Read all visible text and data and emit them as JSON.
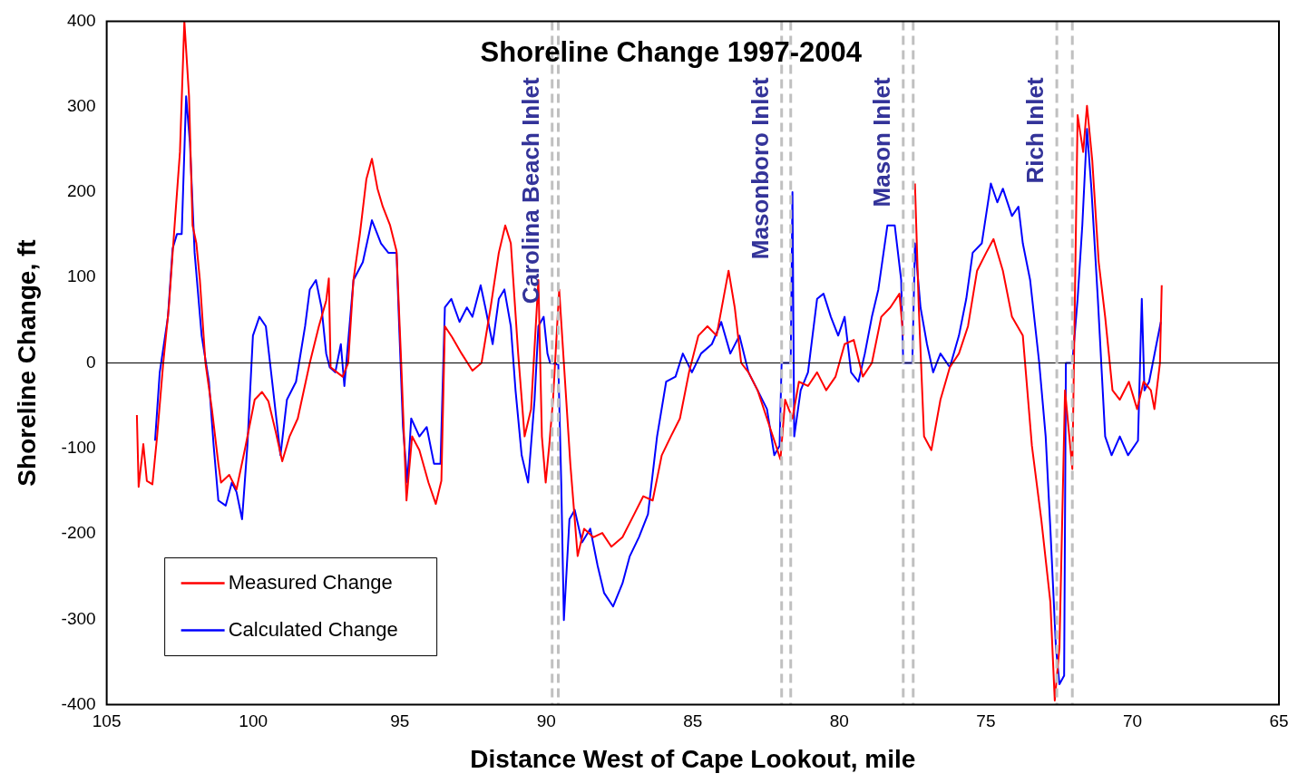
{
  "chart_data": {
    "type": "line",
    "title": "Shoreline Change 1997-2004",
    "xlabel": "Distance West of Cape Lookout, mile",
    "ylabel": "Shoreline Change, ft",
    "xlim": [
      105,
      65
    ],
    "xticks": [
      105,
      100,
      95,
      90,
      85,
      80,
      75,
      70,
      65
    ],
    "ylim": [
      -400,
      400
    ],
    "yticks": [
      -400,
      -300,
      -200,
      -100,
      0,
      100,
      200,
      300,
      400
    ],
    "grid": false,
    "legend": "bottom left",
    "marker": "none",
    "line_style": "solid",
    "ref_lines": [
      {
        "axis": "y",
        "value": 0,
        "label": null,
        "color": "#000000",
        "line_style": "solid"
      },
      {
        "axis": "x",
        "value": 89.8,
        "label": "Carolina Beach Inlet",
        "color": "#c0c0c0",
        "line_style": "dashed"
      },
      {
        "axis": "x",
        "value": 89.59,
        "label": null,
        "color": "#c0c0c0",
        "line_style": "dashed"
      },
      {
        "axis": "x",
        "value": 81.97,
        "label": "Masonboro Inlet",
        "color": "#c0c0c0",
        "line_style": "dashed"
      },
      {
        "axis": "x",
        "value": 81.66,
        "label": null,
        "color": "#c0c0c0",
        "line_style": "dashed"
      },
      {
        "axis": "x",
        "value": 77.82,
        "label": "Mason Inlet",
        "color": "#c0c0c0",
        "line_style": "dashed"
      },
      {
        "axis": "x",
        "value": 77.48,
        "label": null,
        "color": "#c0c0c0",
        "line_style": "dashed"
      },
      {
        "axis": "x",
        "value": 72.58,
        "label": "Rich Inlet",
        "color": "#c0c0c0",
        "line_style": "dashed"
      },
      {
        "axis": "x",
        "value": 72.05,
        "label": null,
        "color": "#c0c0c0",
        "line_style": "dashed"
      }
    ],
    "series": [
      {
        "name": "Measured Change",
        "color": "#ff0000",
        "x": [
          103.97,
          103.91,
          103.75,
          103.63,
          103.44,
          103.28,
          103.07,
          102.88,
          102.66,
          102.5,
          102.35,
          102.19,
          102.07,
          101.94,
          101.82,
          101.63,
          101.41,
          101.19,
          101.1,
          100.82,
          100.57,
          100.26,
          99.95,
          99.7,
          99.48,
          99.23,
          99.01,
          98.76,
          98.48,
          98.07,
          97.76,
          97.51,
          97.42,
          97.36,
          97.14,
          96.95,
          96.76,
          96.58,
          96.36,
          96.14,
          95.95,
          95.76,
          95.58,
          95.33,
          95.11,
          94.95,
          94.77,
          94.58,
          94.33,
          94.02,
          93.77,
          93.58,
          93.46,
          93.21,
          92.89,
          92.52,
          92.21,
          91.9,
          91.62,
          91.4,
          91.21,
          90.96,
          90.74,
          90.52,
          90.27,
          90.15,
          90.02,
          89.9,
          89.77,
          89.56,
          89.4,
          89.18,
          88.93,
          88.71,
          88.4,
          88.09,
          87.78,
          87.4,
          87.0,
          86.69,
          86.37,
          86.06,
          85.75,
          85.44,
          85.13,
          84.81,
          84.5,
          84.19,
          83.78,
          83.57,
          83.35,
          83.1,
          82.79,
          82.47,
          82.16,
          82.01,
          81.85,
          81.6,
          81.38,
          81.07,
          80.76,
          80.45,
          80.13,
          79.82,
          79.51,
          79.2,
          78.89,
          78.57,
          78.26,
          77.95,
          77.82,
          77.6,
          77.42,
          77.29,
          77.11,
          76.86,
          76.55,
          76.23,
          75.92,
          75.61,
          75.3,
          74.99,
          74.74,
          74.42,
          74.11,
          73.74,
          73.43,
          73.11,
          72.8,
          72.65,
          72.49,
          72.3,
          72.05,
          71.87,
          71.68,
          71.55,
          71.37,
          71.15,
          70.93,
          70.68,
          70.43,
          70.12,
          69.84,
          69.62,
          69.37,
          69.25,
          69.06,
          69.0
        ],
        "values": [
          -61,
          -145,
          -95,
          -138,
          -142,
          -86,
          0,
          65,
          172,
          247,
          400,
          312,
          161,
          140,
          97,
          0,
          -54,
          -118,
          -140,
          -131,
          -148,
          -97,
          -43,
          -34,
          -45,
          -81,
          -115,
          -86,
          -65,
          0,
          43,
          73,
          99,
          -5,
          -11,
          -16,
          0,
          97,
          151,
          215,
          239,
          204,
          183,
          161,
          131,
          0,
          -161,
          -86,
          -102,
          -140,
          -165,
          -138,
          43,
          30,
          11,
          -9,
          0,
          65,
          129,
          161,
          140,
          11,
          -86,
          -54,
          97,
          -86,
          -140,
          -97,
          -43,
          86,
          0,
          -118,
          -226,
          -194,
          -204,
          -199,
          -215,
          -204,
          -177,
          -156,
          -161,
          -108,
          -86,
          -65,
          -11,
          32,
          43,
          32,
          108,
          65,
          0,
          -11,
          -32,
          -65,
          -97,
          -113,
          -43,
          -65,
          -22,
          -27,
          -11,
          -32,
          -16,
          22,
          27,
          -16,
          0,
          54,
          65,
          81,
          32,
          null,
          210,
          65,
          -86,
          -102,
          -43,
          -5,
          11,
          43,
          108,
          129,
          145,
          108,
          54,
          32,
          -97,
          -183,
          -280,
          -395,
          -333,
          -32,
          -124,
          290,
          247,
          301,
          237,
          118,
          54,
          -32,
          -43,
          -22,
          -54,
          -22,
          -32,
          -54,
          0,
          91
        ]
      },
      {
        "name": "Calculated Change",
        "color": "#0000ff",
        "x": [
          103.35,
          103.19,
          102.91,
          102.75,
          102.6,
          102.44,
          102.29,
          102.16,
          102.0,
          101.76,
          101.51,
          101.35,
          101.19,
          100.94,
          100.73,
          100.57,
          100.38,
          100.2,
          100.01,
          99.79,
          99.57,
          99.32,
          99.07,
          98.85,
          98.54,
          98.23,
          98.07,
          97.86,
          97.67,
          97.51,
          97.39,
          97.2,
          97.01,
          96.89,
          96.58,
          96.26,
          95.95,
          95.64,
          95.39,
          95.11,
          95.02,
          94.89,
          94.74,
          94.61,
          94.33,
          94.08,
          93.83,
          93.61,
          93.46,
          93.24,
          92.96,
          92.71,
          92.52,
          92.24,
          92.08,
          91.83,
          91.62,
          91.43,
          91.21,
          91.05,
          90.84,
          90.62,
          90.4,
          90.27,
          90.09,
          89.96,
          89.87,
          89.59,
          89.49,
          89.4,
          89.21,
          89.03,
          88.78,
          88.5,
          88.25,
          88.03,
          87.72,
          87.4,
          87.15,
          86.84,
          86.53,
          86.22,
          85.91,
          85.59,
          85.34,
          85.03,
          84.72,
          84.35,
          84.03,
          83.72,
          83.41,
          83.1,
          82.79,
          82.47,
          82.22,
          82.04,
          81.97,
          81.66,
          81.6,
          81.54,
          81.32,
          81.07,
          80.76,
          80.54,
          80.29,
          80.04,
          79.82,
          79.6,
          79.35,
          79.13,
          78.89,
          78.67,
          78.36,
          78.11,
          77.89,
          77.82,
          77.51,
          77.42,
          77.23,
          77.01,
          76.8,
          76.55,
          76.23,
          75.92,
          75.67,
          75.45,
          75.14,
          74.83,
          74.61,
          74.42,
          74.11,
          73.89,
          73.74,
          73.49,
          73.18,
          72.96,
          72.8,
          72.61,
          72.49,
          72.33,
          72.27,
          72.05,
          71.87,
          71.71,
          71.55,
          71.4,
          71.18,
          70.93,
          70.71,
          70.43,
          70.15,
          69.81,
          69.68,
          69.59,
          69.43,
          69.18,
          69.03
        ],
        "values": [
          -91,
          -11,
          54,
          134,
          151,
          151,
          312,
          258,
          129,
          32,
          -22,
          -97,
          -161,
          -167,
          -140,
          -151,
          -183,
          -97,
          32,
          54,
          43,
          -32,
          -108,
          -43,
          -22,
          43,
          86,
          97,
          65,
          11,
          -5,
          -11,
          22,
          -27,
          97,
          118,
          167,
          140,
          129,
          129,
          43,
          -75,
          -140,
          -65,
          -86,
          -75,
          -118,
          -118,
          65,
          75,
          48,
          65,
          54,
          91,
          65,
          22,
          75,
          86,
          43,
          -32,
          -108,
          -140,
          -43,
          43,
          54,
          11,
          0,
          -2,
          -140,
          -301,
          -183,
          -172,
          -210,
          -194,
          -237,
          -269,
          -285,
          -258,
          -226,
          -204,
          -177,
          -86,
          -22,
          -16,
          11,
          -11,
          11,
          22,
          48,
          11,
          32,
          -11,
          -32,
          -54,
          -108,
          -97,
          0,
          0,
          200,
          -86,
          -32,
          -11,
          75,
          81,
          54,
          32,
          54,
          -11,
          -22,
          11,
          54,
          86,
          161,
          161,
          97,
          0,
          0,
          140,
          65,
          22,
          -11,
          11,
          -5,
          32,
          75,
          129,
          140,
          210,
          188,
          204,
          172,
          183,
          140,
          97,
          0,
          -86,
          -194,
          -333,
          -376,
          -366,
          0,
          0,
          75,
          161,
          274,
          204,
          75,
          -86,
          -108,
          -86,
          -108,
          -91,
          75,
          -32,
          -22,
          22,
          48
        ]
      }
    ]
  }
}
